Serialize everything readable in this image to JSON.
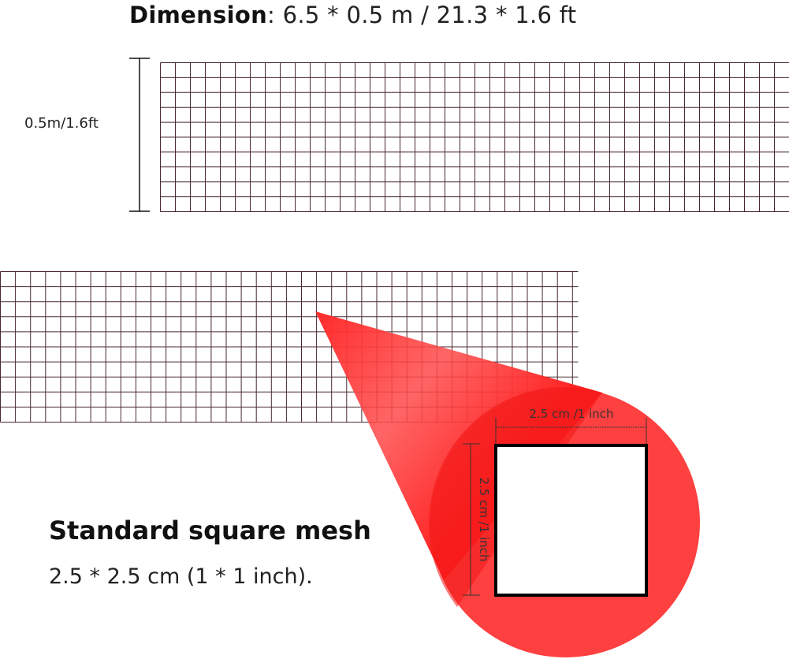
{
  "dimension": {
    "label": "Dimension",
    "value": ": 6.5 * 0.5 m / 21.3 * 1.6 ft"
  },
  "height_label": "0.5m/1.6ft",
  "zoom_detail": {
    "width_label": "2.5 cm /1 inch",
    "height_label": "2.5 cm /1 inch"
  },
  "mesh": {
    "heading": "Standard square mesh",
    "description": "2.5 * 2.5 cm (1 * 1 inch)."
  },
  "colors": {
    "grid_line": "#4a2a30",
    "magnifier": "#ff3b3b",
    "magnifier_dark": "#f01818"
  }
}
